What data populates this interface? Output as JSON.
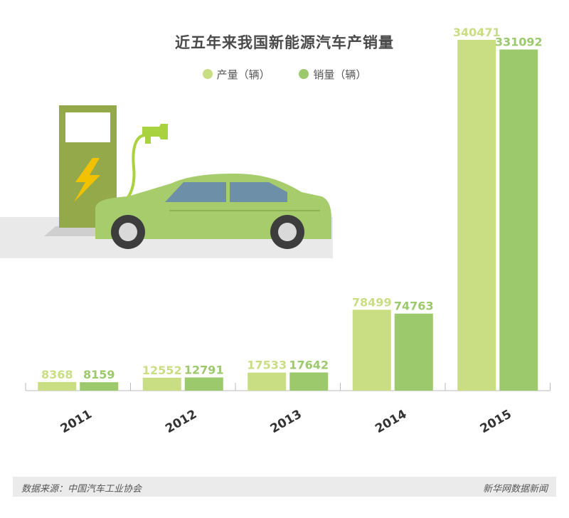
{
  "title": "近五年来我国新能源汽车产销量",
  "legend": {
    "production": "产量（辆）",
    "sales": "销量（辆）"
  },
  "colors": {
    "production": "#c9de83",
    "sales": "#9bc96b",
    "axis": "#bbbbbb",
    "year_label": "#333333"
  },
  "chart_data": {
    "type": "bar",
    "title": "近五年来我国新能源汽车产销量",
    "categories": [
      "2011",
      "2012",
      "2013",
      "2014",
      "2015"
    ],
    "series": [
      {
        "name": "产量（辆）",
        "values": [
          8368,
          12552,
          17533,
          78499,
          340471
        ]
      },
      {
        "name": "销量（辆）",
        "values": [
          8159,
          12791,
          17642,
          74763,
          331092
        ]
      }
    ],
    "ylim": [
      0,
      340471
    ],
    "grid": false,
    "legend_position": "top-center"
  },
  "footer": {
    "source": "数据来源：中国汽车工业协会",
    "brand": "新华网数据新闻"
  }
}
